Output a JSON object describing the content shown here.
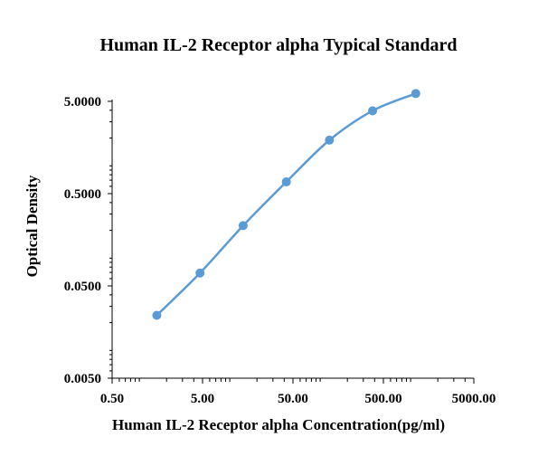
{
  "chart_data": {
    "type": "scatter",
    "title": "Human IL-2 Receptor alpha Typical Standard",
    "xlabel": "Human IL-2 Receptor alpha Concentration(pg/ml)",
    "ylabel": "Optical Density",
    "x_scale": "log",
    "y_scale": "log",
    "xlim": [
      0.5,
      5000
    ],
    "ylim": [
      0.005,
      5
    ],
    "x_ticks": [
      "0.50",
      "5.00",
      "50.00",
      "500.00",
      "5000.00"
    ],
    "y_ticks": [
      "5.0000",
      "0.5000",
      "0.0500",
      "0.0050"
    ],
    "grid": false,
    "legend": "none",
    "colors": {
      "series": "#5b9bd5",
      "axis": "#000000"
    },
    "series": [
      {
        "x": [
          1.56,
          4.69,
          14.06,
          42.19,
          126.56,
          379.69,
          1140
        ],
        "y": [
          0.024,
          0.069,
          0.225,
          0.67,
          1.9,
          3.95,
          6.07
        ],
        "fit": "smooth"
      }
    ]
  }
}
